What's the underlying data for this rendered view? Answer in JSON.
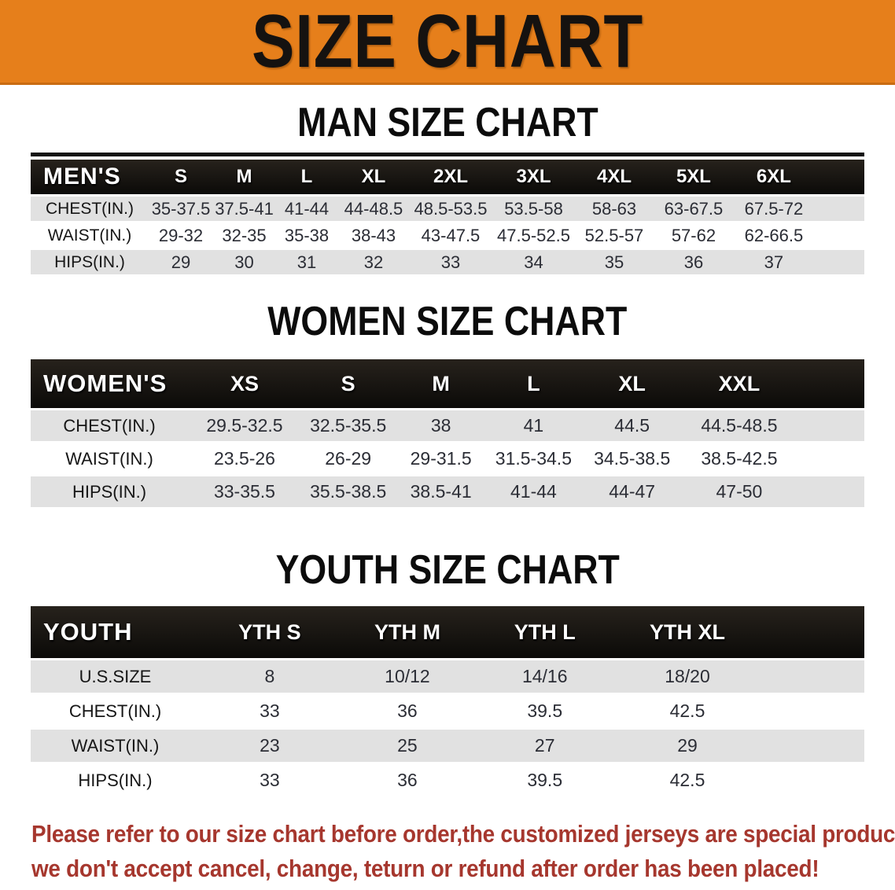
{
  "banner": {
    "title": "SIZE CHART"
  },
  "colors": {
    "banner_orange": "#e67f1b",
    "banner_edge": "#c96c12",
    "row_stripe_gray": "#e1e1e1",
    "header_band_black": "#0b0a08",
    "data_text": "#2b2d35",
    "footer_red": "#a6372e"
  },
  "chart_data": [
    {
      "type": "table",
      "title": "MAN SIZE CHART",
      "header_label": "MEN'S",
      "columns": [
        "S",
        "M",
        "L",
        "XL",
        "2XL",
        "3XL",
        "4XL",
        "5XL",
        "6XL"
      ],
      "rows": [
        {
          "label": "CHEST(IN.)",
          "values": [
            "35-37.5",
            "37.5-41",
            "41-44",
            "44-48.5",
            "48.5-53.5",
            "53.5-58",
            "58-63",
            "63-67.5",
            "67.5-72"
          ]
        },
        {
          "label": "WAIST(IN.)",
          "values": [
            "29-32",
            "32-35",
            "35-38",
            "38-43",
            "43-47.5",
            "47.5-52.5",
            "52.5-57",
            "57-62",
            "62-66.5"
          ]
        },
        {
          "label": "HIPS(IN.)",
          "values": [
            "29",
            "30",
            "31",
            "32",
            "33",
            "34",
            "35",
            "36",
            "37"
          ]
        }
      ]
    },
    {
      "type": "table",
      "title": "WOMEN SIZE CHART",
      "header_label": "WOMEN'S",
      "columns": [
        "XS",
        "S",
        "M",
        "L",
        "XL",
        "XXL"
      ],
      "rows": [
        {
          "label": "CHEST(IN.)",
          "values": [
            "29.5-32.5",
            "32.5-35.5",
            "38",
            "41",
            "44.5",
            "44.5-48.5"
          ]
        },
        {
          "label": "WAIST(IN.)",
          "values": [
            "23.5-26",
            "26-29",
            "29-31.5",
            "31.5-34.5",
            "34.5-38.5",
            "38.5-42.5"
          ]
        },
        {
          "label": "HIPS(IN.)",
          "values": [
            "33-35.5",
            "35.5-38.5",
            "38.5-41",
            "41-44",
            "44-47",
            "47-50"
          ]
        }
      ]
    },
    {
      "type": "table",
      "title": "YOUTH SIZE CHART",
      "header_label": "YOUTH",
      "columns": [
        "YTH S",
        "YTH M",
        "YTH L",
        "YTH XL"
      ],
      "rows": [
        {
          "label": "U.S.SIZE",
          "values": [
            "8",
            "10/12",
            "14/16",
            "18/20"
          ]
        },
        {
          "label": "CHEST(IN.)",
          "values": [
            "33",
            "36",
            "39.5",
            "42.5"
          ]
        },
        {
          "label": "WAIST(IN.)",
          "values": [
            "23",
            "25",
            "27",
            "29"
          ]
        },
        {
          "label": "HIPS(IN.)",
          "values": [
            "33",
            "36",
            "39.5",
            "42.5"
          ]
        }
      ]
    }
  ],
  "footer": {
    "lines": [
      "Please refer to our size chart before order,the customized jerseys are special products,",
      "we don't accept cancel, change, teturn or refund after order has been placed!"
    ]
  }
}
